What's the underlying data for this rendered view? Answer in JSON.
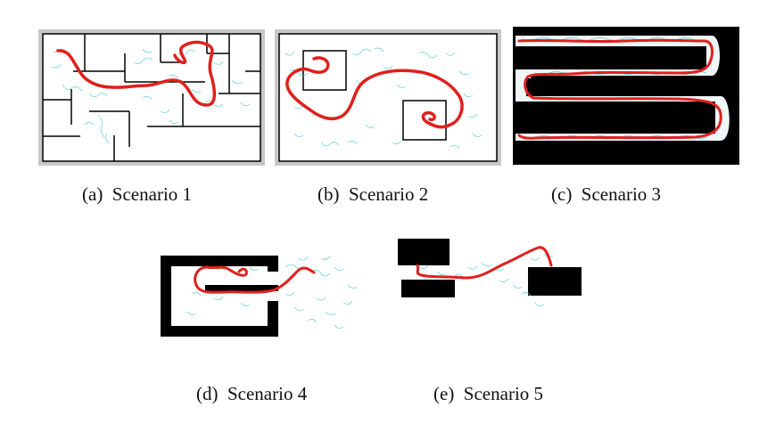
{
  "figure": {
    "subfigures": [
      {
        "id": "a",
        "caption": "(a) Scenario 1"
      },
      {
        "id": "b",
        "caption": "(b) Scenario 2"
      },
      {
        "id": "c",
        "caption": "(c) Scenario 3"
      },
      {
        "id": "d",
        "caption": "(d) Scenario 4"
      },
      {
        "id": "e",
        "caption": "(e) Scenario 5"
      }
    ],
    "colors": {
      "path": "#e0201c",
      "tree": "#48c8d0",
      "obstacle": "#000000",
      "frame_gray": "#c8c8c8"
    }
  }
}
